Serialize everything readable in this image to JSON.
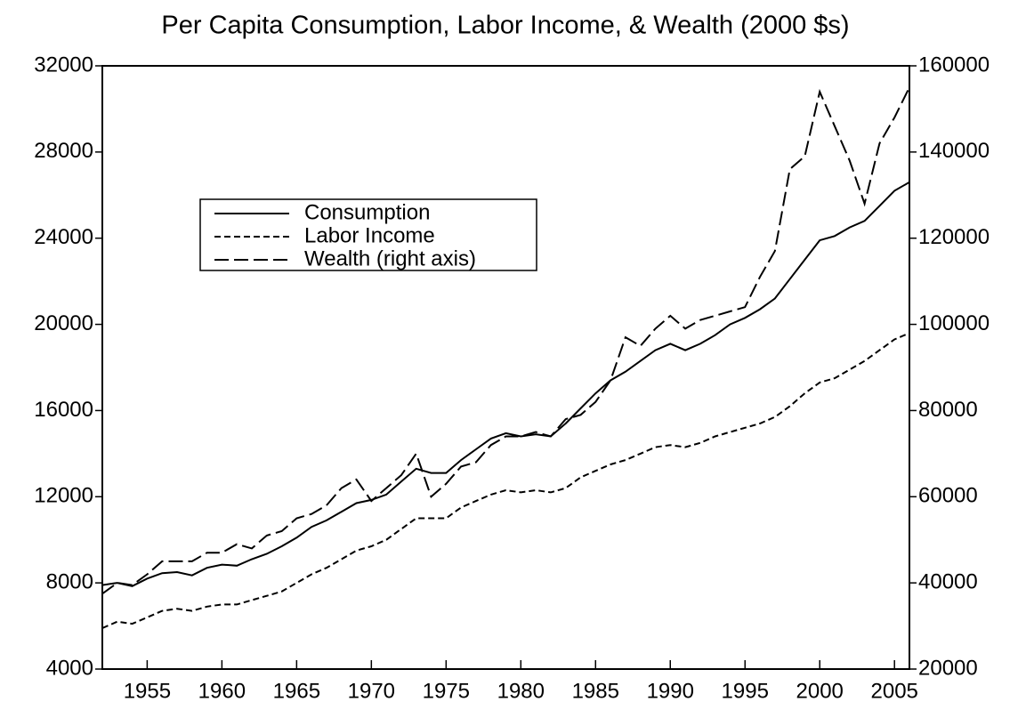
{
  "chart_data": {
    "type": "line",
    "title": "Per Capita Consumption, Labor Income, & Wealth (2000 $s)",
    "x": [
      1952,
      1953,
      1954,
      1955,
      1956,
      1957,
      1958,
      1959,
      1960,
      1961,
      1962,
      1963,
      1964,
      1965,
      1966,
      1967,
      1968,
      1969,
      1970,
      1971,
      1972,
      1973,
      1974,
      1975,
      1976,
      1977,
      1978,
      1979,
      1980,
      1981,
      1982,
      1983,
      1984,
      1985,
      1986,
      1987,
      1988,
      1989,
      1990,
      1991,
      1992,
      1993,
      1994,
      1995,
      1996,
      1997,
      1998,
      1999,
      2000,
      2001,
      2002,
      2003,
      2004,
      2005,
      2006
    ],
    "xlim": [
      1952,
      2006
    ],
    "xticks": [
      1955,
      1960,
      1965,
      1970,
      1975,
      1980,
      1985,
      1990,
      1995,
      2000,
      2005
    ],
    "ylim": [
      4000,
      32000
    ],
    "yticks": [
      4000,
      8000,
      12000,
      16000,
      20000,
      24000,
      28000,
      32000
    ],
    "y2lim": [
      20000,
      160000
    ],
    "y2ticks": [
      20000,
      40000,
      60000,
      80000,
      100000,
      120000,
      140000,
      160000
    ],
    "legend": "upper left",
    "series": [
      {
        "name": "Consumption",
        "color": "#000000",
        "dash": "solid",
        "values": [
          7900,
          8000,
          7850,
          8200,
          8450,
          8500,
          8350,
          8700,
          8850,
          8800,
          9100,
          9350,
          9700,
          10100,
          10600,
          10900,
          11300,
          11700,
          11850,
          12100,
          12700,
          13300,
          13100,
          13100,
          13700,
          14200,
          14700,
          14950,
          14800,
          14900,
          14800,
          15400,
          16100,
          16800,
          17400,
          17800,
          18300,
          18800,
          19100,
          18800,
          19100,
          19500,
          20000,
          20300,
          20700,
          21200,
          22100,
          23000,
          23900,
          24100,
          24500,
          24800,
          25500,
          26200,
          26600
        ]
      },
      {
        "name": "Labor Income",
        "color": "#000000",
        "dash": "short",
        "values": [
          5900,
          6200,
          6100,
          6400,
          6700,
          6800,
          6700,
          6900,
          7000,
          7000,
          7200,
          7400,
          7600,
          8000,
          8400,
          8700,
          9100,
          9500,
          9700,
          10000,
          10500,
          11000,
          11000,
          11000,
          11500,
          11800,
          12100,
          12300,
          12200,
          12300,
          12200,
          12400,
          12900,
          13200,
          13500,
          13700,
          14000,
          14300,
          14400,
          14300,
          14500,
          14800,
          15000,
          15200,
          15400,
          15700,
          16200,
          16800,
          17300,
          17500,
          17900,
          18300,
          18800,
          19300,
          19600
        ]
      },
      {
        "name": "Wealth (right axis)",
        "color": "#000000",
        "dash": "long",
        "axis": "y2",
        "values": [
          37500,
          40000,
          39500,
          42000,
          45000,
          45000,
          45000,
          47000,
          47000,
          49000,
          48000,
          51000,
          52000,
          55000,
          56000,
          58000,
          62000,
          64000,
          59000,
          62000,
          65000,
          70000,
          60000,
          63000,
          67000,
          68000,
          72000,
          74000,
          74000,
          75000,
          74000,
          78000,
          79000,
          82000,
          87000,
          97000,
          95000,
          99000,
          102000,
          99000,
          101000,
          102000,
          103000,
          104000,
          111000,
          117000,
          136000,
          139000,
          154000,
          146000,
          138000,
          128000,
          142000,
          148000,
          155000
        ]
      }
    ]
  }
}
